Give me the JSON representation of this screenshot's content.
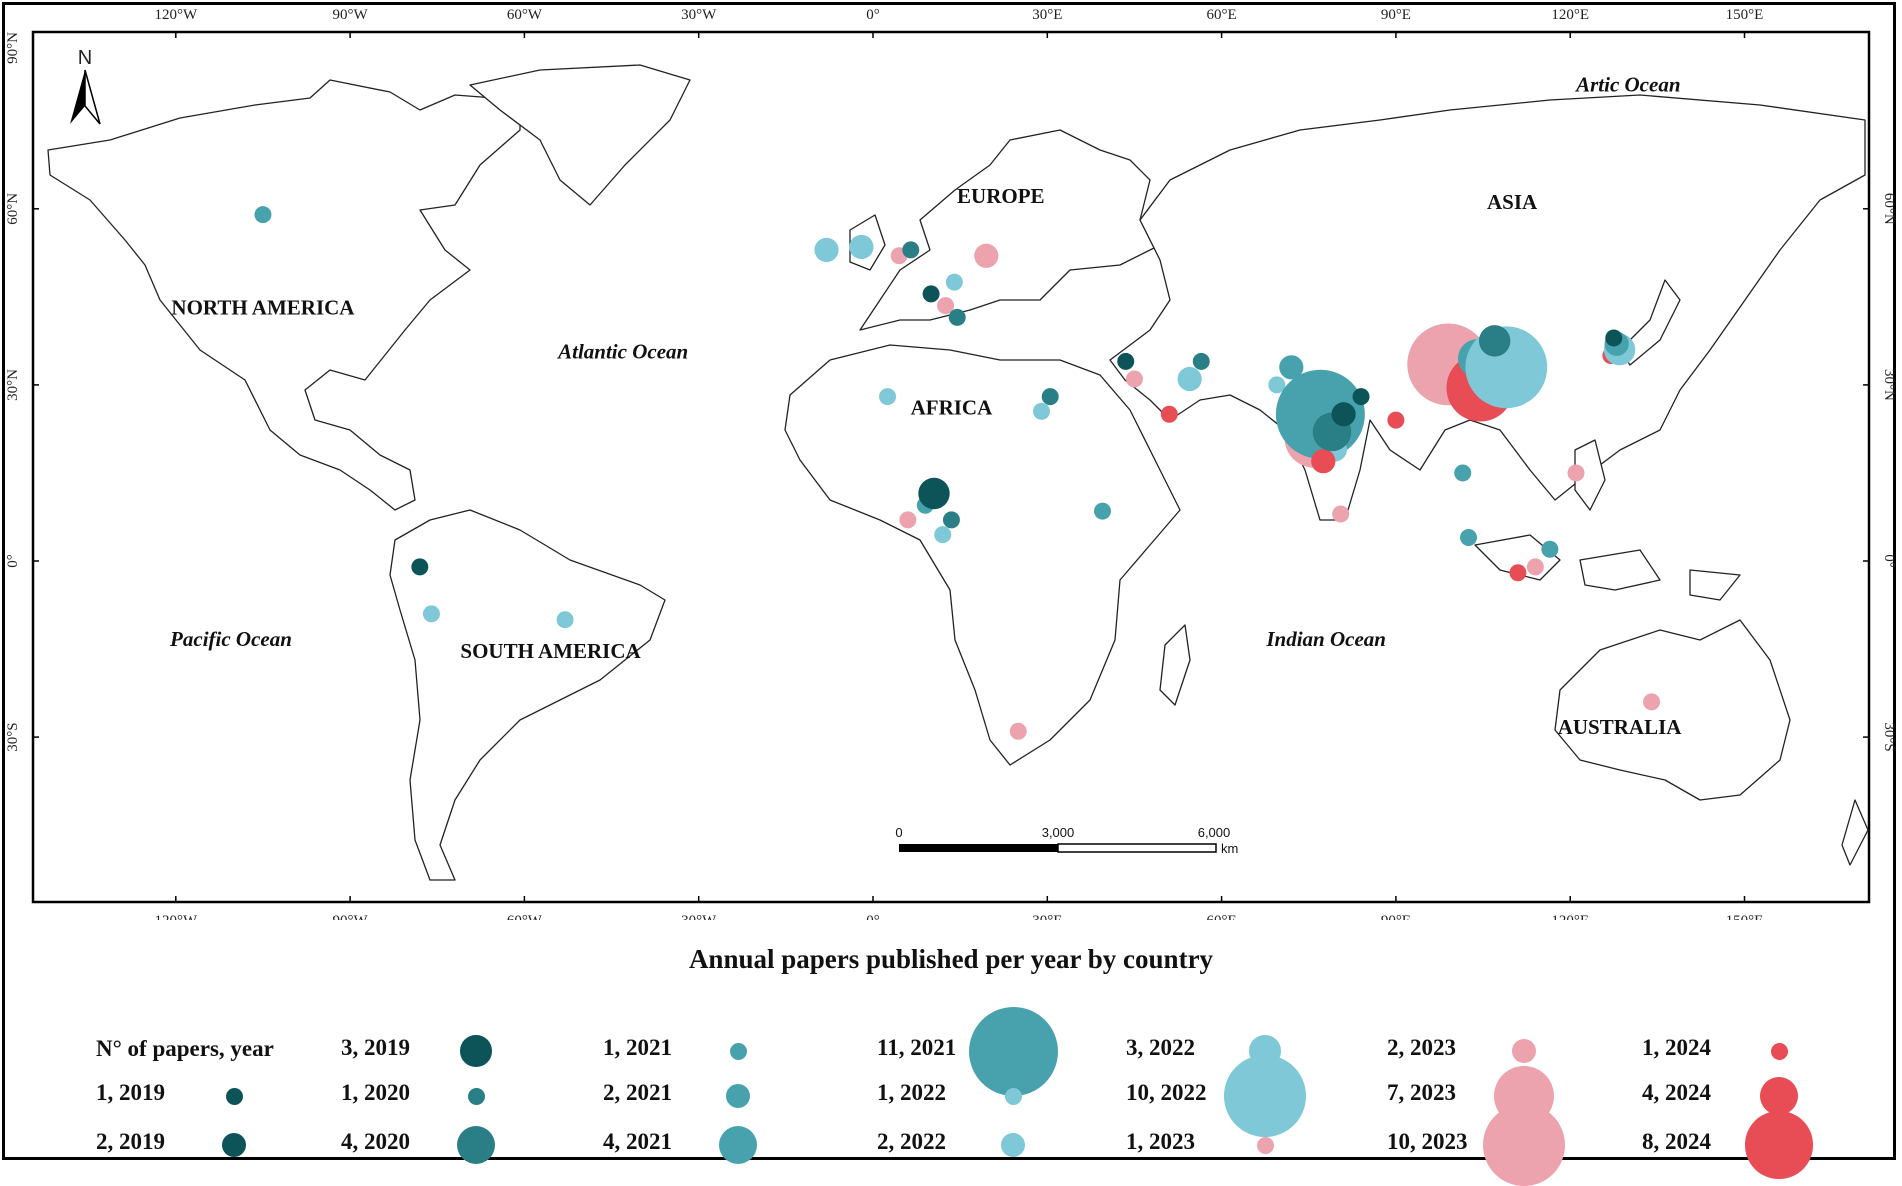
{
  "map": {
    "lon_ticks": [
      "120°W",
      "90°W",
      "60°W",
      "30°W",
      "0°",
      "30°E",
      "60°E",
      "90°E",
      "120°E",
      "150°E"
    ],
    "lat_ticks": [
      "90°N",
      "60°N",
      "30°N",
      "0°",
      "30°S"
    ],
    "north_label": "N",
    "continents": [
      {
        "name": "NORTH AMERICA",
        "lon": -105,
        "lat": 42
      },
      {
        "name": "EUROPE",
        "lon": 22,
        "lat": 61
      },
      {
        "name": "ASIA",
        "lon": 110,
        "lat": 60
      },
      {
        "name": "AFRICA",
        "lon": 13.5,
        "lat": 25
      },
      {
        "name": "SOUTH AMERICA",
        "lon": -55.5,
        "lat": -16.5
      },
      {
        "name": "AUSTRALIA",
        "lon": 128.5,
        "lat": -29.5
      }
    ],
    "oceans": [
      {
        "name": "Artic Ocean",
        "lon": 130,
        "lat": 80
      },
      {
        "name": "Atlantic Ocean",
        "lon": -43,
        "lat": 34.5
      },
      {
        "name": "Pacific Ocean",
        "lon": -110.5,
        "lat": -14.5
      },
      {
        "name": "Indian Ocean",
        "lon": 78,
        "lat": -14.5
      }
    ],
    "scale_bar": {
      "labels": [
        "0",
        "3,000",
        "6,000"
      ],
      "unit": "km"
    }
  },
  "chart_data": {
    "type": "map-bubble",
    "title": "Annual papers published per year by country",
    "legend_header": "N° of papers, year",
    "year_colors": {
      "2019": "#0d5459",
      "2020": "#2a7f86",
      "2021": "#48a2ad",
      "2022": "#7ec8d8",
      "2023": "#eda3ad",
      "2024": "#e84c55"
    },
    "legend": [
      {
        "label": "1, 2019",
        "papers": 1,
        "year": "2019"
      },
      {
        "label": "2, 2019",
        "papers": 2,
        "year": "2019"
      },
      {
        "label": "3, 2019",
        "papers": 3,
        "year": "2019"
      },
      {
        "label": "1, 2020",
        "papers": 1,
        "year": "2020"
      },
      {
        "label": "4, 2020",
        "papers": 4,
        "year": "2020"
      },
      {
        "label": "1, 2021",
        "papers": 1,
        "year": "2021"
      },
      {
        "label": "2, 2021",
        "papers": 2,
        "year": "2021"
      },
      {
        "label": "4, 2021",
        "papers": 4,
        "year": "2021"
      },
      {
        "label": "11, 2021",
        "papers": 11,
        "year": "2021"
      },
      {
        "label": "1, 2022",
        "papers": 1,
        "year": "2022"
      },
      {
        "label": "2, 2022",
        "papers": 2,
        "year": "2022"
      },
      {
        "label": "3, 2022",
        "papers": 3,
        "year": "2022"
      },
      {
        "label": "10, 2022",
        "papers": 10,
        "year": "2022"
      },
      {
        "label": "1, 2023",
        "papers": 1,
        "year": "2023"
      },
      {
        "label": "2, 2023",
        "papers": 2,
        "year": "2023"
      },
      {
        "label": "7, 2023",
        "papers": 7,
        "year": "2023"
      },
      {
        "label": "10, 2023",
        "papers": 10,
        "year": "2023"
      },
      {
        "label": "1, 2024",
        "papers": 1,
        "year": "2024"
      },
      {
        "label": "4, 2024",
        "papers": 4,
        "year": "2024"
      },
      {
        "label": "8, 2024",
        "papers": 8,
        "year": "2024"
      }
    ],
    "points": [
      {
        "lon": -105,
        "lat": 59,
        "papers": 1,
        "year": "2021"
      },
      {
        "lon": -78,
        "lat": -1,
        "papers": 1,
        "year": "2019"
      },
      {
        "lon": -76,
        "lat": -9,
        "papers": 1,
        "year": "2022"
      },
      {
        "lon": -53,
        "lat": -10,
        "papers": 1,
        "year": "2022"
      },
      {
        "lon": -8,
        "lat": 53,
        "papers": 2,
        "year": "2022"
      },
      {
        "lon": -2,
        "lat": 53.5,
        "papers": 2,
        "year": "2022"
      },
      {
        "lon": 4.5,
        "lat": 52,
        "papers": 1,
        "year": "2023"
      },
      {
        "lon": 6.5,
        "lat": 53,
        "papers": 1,
        "year": "2020"
      },
      {
        "lon": 19.5,
        "lat": 52,
        "papers": 2,
        "year": "2023"
      },
      {
        "lon": 10,
        "lat": 45.5,
        "papers": 1,
        "year": "2019"
      },
      {
        "lon": 12.5,
        "lat": 43.5,
        "papers": 1,
        "year": "2023"
      },
      {
        "lon": 14,
        "lat": 47.5,
        "papers": 1,
        "year": "2022"
      },
      {
        "lon": 14.5,
        "lat": 41.5,
        "papers": 1,
        "year": "2020"
      },
      {
        "lon": 2.5,
        "lat": 28,
        "papers": 1,
        "year": "2022"
      },
      {
        "lon": 29,
        "lat": 25.5,
        "papers": 1,
        "year": "2022"
      },
      {
        "lon": 30.5,
        "lat": 28,
        "papers": 1,
        "year": "2020"
      },
      {
        "lon": 43.5,
        "lat": 34,
        "papers": 1,
        "year": "2019"
      },
      {
        "lon": 45,
        "lat": 31,
        "papers": 1,
        "year": "2023"
      },
      {
        "lon": 51,
        "lat": 25,
        "papers": 1,
        "year": "2024"
      },
      {
        "lon": 54.5,
        "lat": 31,
        "papers": 2,
        "year": "2022"
      },
      {
        "lon": 56.5,
        "lat": 34,
        "papers": 1,
        "year": "2020"
      },
      {
        "lon": 69.5,
        "lat": 30,
        "papers": 1,
        "year": "2022"
      },
      {
        "lon": 72,
        "lat": 33,
        "papers": 2,
        "year": "2021"
      },
      {
        "lon": 76,
        "lat": 21,
        "papers": 7,
        "year": "2023"
      },
      {
        "lon": 77,
        "lat": 25,
        "papers": 11,
        "year": "2021"
      },
      {
        "lon": 79.5,
        "lat": 19,
        "papers": 2,
        "year": "2022"
      },
      {
        "lon": 77.5,
        "lat": 17,
        "papers": 2,
        "year": "2024"
      },
      {
        "lon": 79,
        "lat": 22,
        "papers": 4,
        "year": "2020"
      },
      {
        "lon": 81,
        "lat": 25,
        "papers": 2,
        "year": "2019"
      },
      {
        "lon": 84,
        "lat": 28,
        "papers": 1,
        "year": "2019"
      },
      {
        "lon": 80.5,
        "lat": 8,
        "papers": 1,
        "year": "2023"
      },
      {
        "lon": 90,
        "lat": 24,
        "papers": 1,
        "year": "2024"
      },
      {
        "lon": 99,
        "lat": 33.5,
        "papers": 10,
        "year": "2023"
      },
      {
        "lon": 104.5,
        "lat": 29.5,
        "papers": 8,
        "year": "2024"
      },
      {
        "lon": 104,
        "lat": 34.5,
        "papers": 4,
        "year": "2021"
      },
      {
        "lon": 109,
        "lat": 33,
        "papers": 10,
        "year": "2022"
      },
      {
        "lon": 107,
        "lat": 37.5,
        "papers": 3,
        "year": "2020"
      },
      {
        "lon": 101.5,
        "lat": 15,
        "papers": 1,
        "year": "2021"
      },
      {
        "lon": 102.5,
        "lat": 4,
        "papers": 1,
        "year": "2021"
      },
      {
        "lon": 111,
        "lat": -2,
        "papers": 1,
        "year": "2024"
      },
      {
        "lon": 114,
        "lat": -1,
        "papers": 1,
        "year": "2023"
      },
      {
        "lon": 116.5,
        "lat": 2,
        "papers": 1,
        "year": "2021"
      },
      {
        "lon": 121,
        "lat": 15,
        "papers": 1,
        "year": "2023"
      },
      {
        "lon": 127,
        "lat": 35,
        "papers": 1,
        "year": "2024"
      },
      {
        "lon": 128.5,
        "lat": 36,
        "papers": 3,
        "year": "2022"
      },
      {
        "lon": 128,
        "lat": 37,
        "papers": 2,
        "year": "2021"
      },
      {
        "lon": 127.5,
        "lat": 38,
        "papers": 1,
        "year": "2019"
      },
      {
        "lon": 134,
        "lat": -24,
        "papers": 1,
        "year": "2023"
      },
      {
        "lon": 9,
        "lat": 9.5,
        "papers": 1,
        "year": "2021"
      },
      {
        "lon": 10.5,
        "lat": 11.5,
        "papers": 3,
        "year": "2019"
      },
      {
        "lon": 6,
        "lat": 7,
        "papers": 1,
        "year": "2023"
      },
      {
        "lon": 12,
        "lat": 4.5,
        "papers": 1,
        "year": "2022"
      },
      {
        "lon": 13.5,
        "lat": 7,
        "papers": 1,
        "year": "2020"
      },
      {
        "lon": 39.5,
        "lat": 8.5,
        "papers": 1,
        "year": "2021"
      },
      {
        "lon": 25,
        "lat": -29,
        "papers": 1,
        "year": "2023"
      }
    ]
  }
}
